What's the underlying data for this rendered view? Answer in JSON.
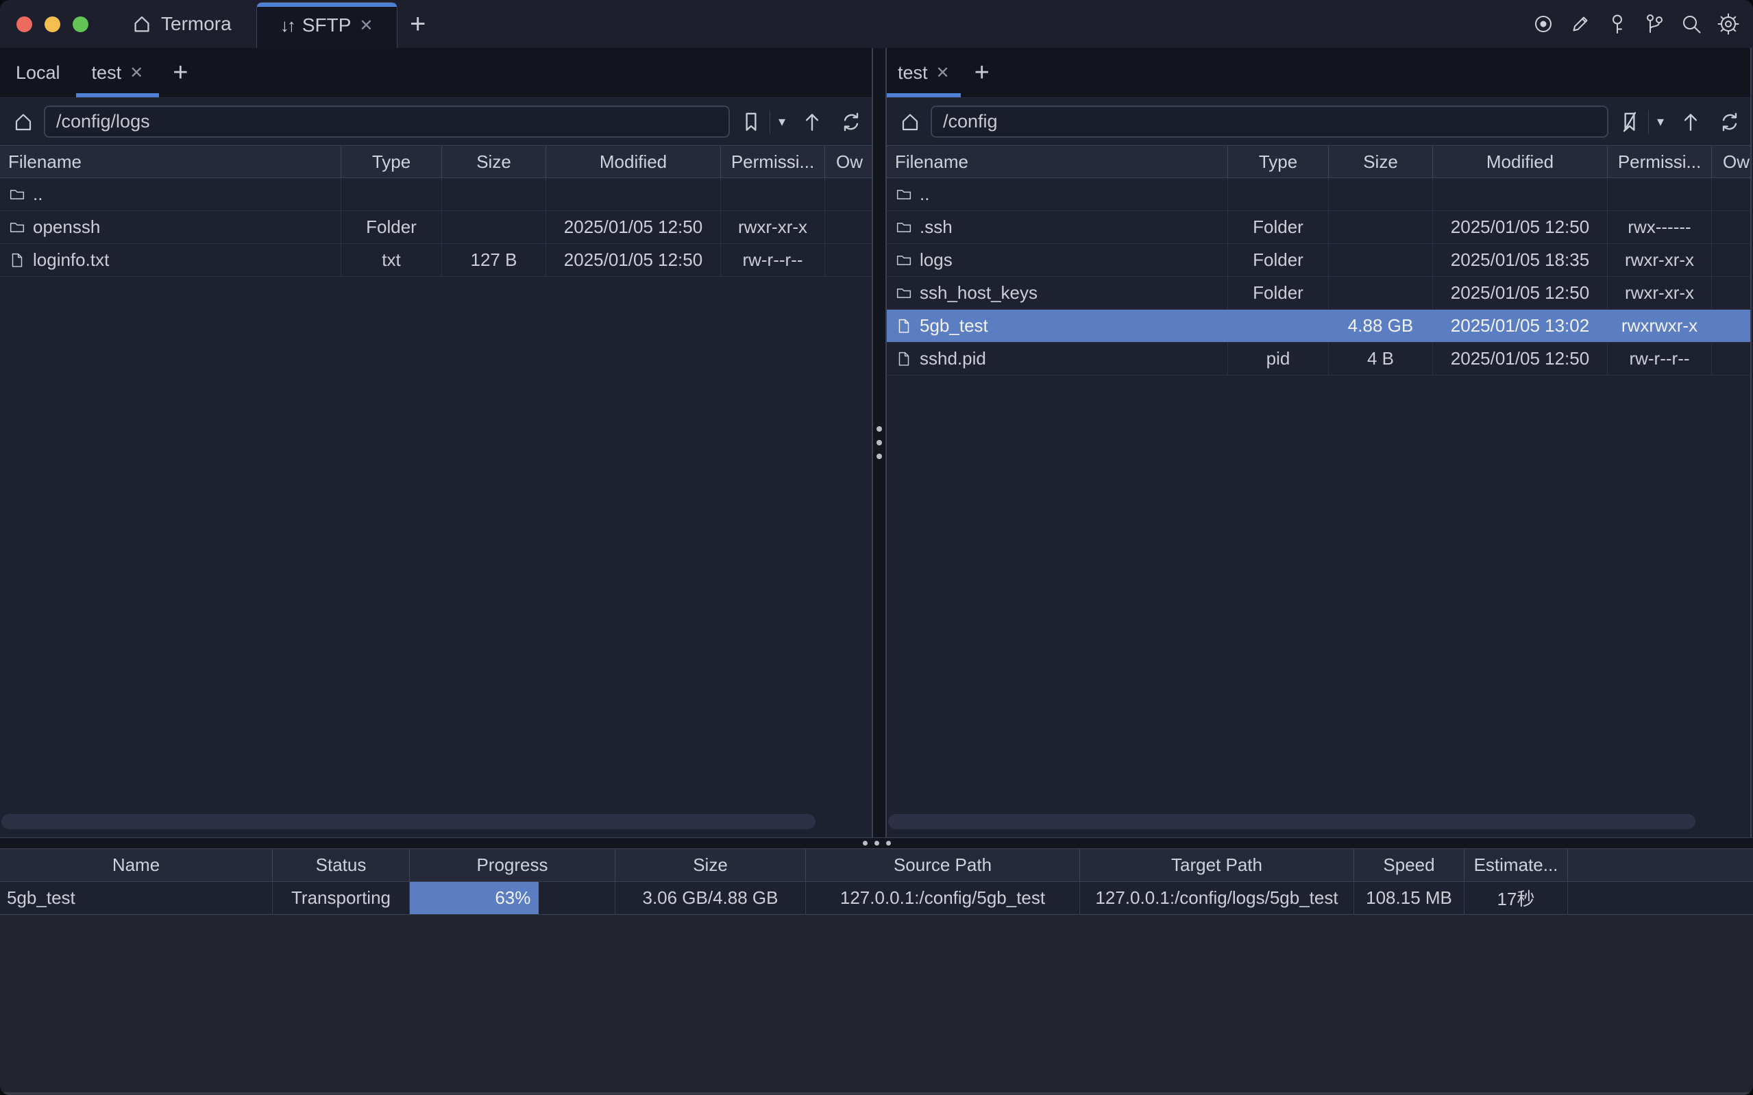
{
  "icons": {
    "close": "✕",
    "plus": "+",
    "caret_down": "▾",
    "sftp_arrows": "↓↑"
  },
  "colors": {
    "accent": "#4e80d4",
    "selection": "#5b7dc2",
    "progress": "#5b7dc2"
  },
  "titlebar": {
    "app_tab": {
      "label": "Termora"
    },
    "sftp_tab": {
      "label": "SFTP"
    },
    "toolbar_icons": [
      "record",
      "edit",
      "key",
      "branches",
      "search",
      "settings"
    ]
  },
  "left_pane": {
    "tabs": [
      {
        "label": "Local",
        "active": false
      },
      {
        "label": "test",
        "active": true
      }
    ],
    "path": "/config/logs",
    "files": {
      "columns": [
        "Filename",
        "Type",
        "Size",
        "Modified",
        "Permissi...",
        "Ow"
      ],
      "rows": [
        {
          "icon": "folder",
          "filename": "..",
          "type": "",
          "size": "",
          "modified": "",
          "permissions": "",
          "owner": "",
          "selected": false
        },
        {
          "icon": "folder",
          "filename": "openssh",
          "type": "Folder",
          "size": "",
          "modified": "2025/01/05 12:50",
          "permissions": "rwxr-xr-x",
          "owner": "",
          "selected": false
        },
        {
          "icon": "file",
          "filename": "loginfo.txt",
          "type": "txt",
          "size": "127 B",
          "modified": "2025/01/05 12:50",
          "permissions": "rw-r--r--",
          "owner": "",
          "selected": false
        }
      ]
    }
  },
  "right_pane": {
    "tabs": [
      {
        "label": "test",
        "active": true
      }
    ],
    "path": "/config",
    "files": {
      "columns": [
        "Filename",
        "Type",
        "Size",
        "Modified",
        "Permissi...",
        "Ow"
      ],
      "rows": [
        {
          "icon": "folder",
          "filename": "..",
          "type": "",
          "size": "",
          "modified": "",
          "permissions": "",
          "owner": "",
          "selected": false
        },
        {
          "icon": "folder",
          "filename": ".ssh",
          "type": "Folder",
          "size": "",
          "modified": "2025/01/05 12:50",
          "permissions": "rwx------",
          "owner": "",
          "selected": false
        },
        {
          "icon": "folder",
          "filename": "logs",
          "type": "Folder",
          "size": "",
          "modified": "2025/01/05 18:35",
          "permissions": "rwxr-xr-x",
          "owner": "",
          "selected": false
        },
        {
          "icon": "folder",
          "filename": "ssh_host_keys",
          "type": "Folder",
          "size": "",
          "modified": "2025/01/05 12:50",
          "permissions": "rwxr-xr-x",
          "owner": "",
          "selected": false
        },
        {
          "icon": "file",
          "filename": "5gb_test",
          "type": "",
          "size": "4.88 GB",
          "modified": "2025/01/05 13:02",
          "permissions": "rwxrwxr-x",
          "owner": "",
          "selected": true
        },
        {
          "icon": "file",
          "filename": "sshd.pid",
          "type": "pid",
          "size": "4 B",
          "modified": "2025/01/05 12:50",
          "permissions": "rw-r--r--",
          "owner": "",
          "selected": false
        }
      ]
    }
  },
  "transfers": {
    "columns": [
      "Name",
      "Status",
      "Progress",
      "Size",
      "Source Path",
      "Target Path",
      "Speed",
      "Estimate...",
      ""
    ],
    "rows": [
      {
        "name": "5gb_test",
        "status": "Transporting",
        "progress_percent": 63,
        "progress_label": "63%",
        "size": "3.06 GB/4.88 GB",
        "source_path": "127.0.0.1:/config/5gb_test",
        "target_path": "127.0.0.1:/config/logs/5gb_test",
        "speed": "108.15 MB",
        "estimate": "17秒"
      }
    ]
  }
}
